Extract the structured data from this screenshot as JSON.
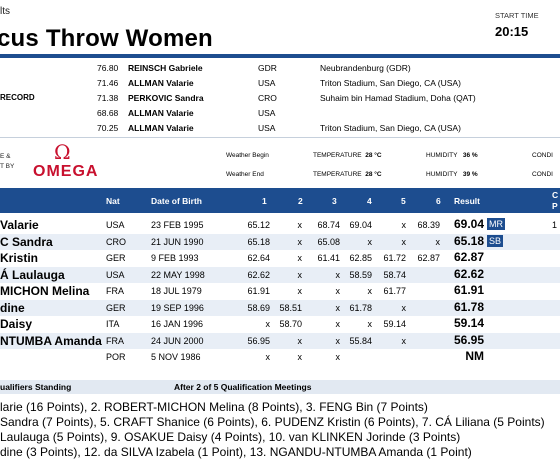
{
  "header": {
    "supertitle": "lts",
    "title": "cus Throw Women",
    "start_time_label": "START TIME",
    "start_time": "20:15"
  },
  "records": [
    {
      "label": "",
      "value": "76.80",
      "name": "REINSCH Gabriele",
      "country": "GDR",
      "place": "Neubrandenburg (GDR)"
    },
    {
      "label": "",
      "value": "71.46",
      "name": "ALLMAN Valarie",
      "country": "USA",
      "place": "Triton Stadium, San Diego, CA (USA)"
    },
    {
      "label": "RECORD",
      "value": "71.38",
      "name": "PERKOVIC Sandra",
      "country": "CRO",
      "place": "Suhaim bin Hamad Stadium, Doha (QAT)"
    },
    {
      "label": "",
      "value": "68.68",
      "name": "ALLMAN Valarie",
      "country": "USA",
      "place": ""
    },
    {
      "label": "",
      "value": "70.25",
      "name": "ALLMAN Valarie",
      "country": "USA",
      "place": "Triton Stadium, San Diego, CA (USA)"
    }
  ],
  "sponsor": {
    "line1": "E &",
    "line2": "T BY",
    "brand": "OMEGA",
    "symbol": "Ω"
  },
  "conditions": {
    "weather_begin": "Weather Begin",
    "weather_end": "Weather End",
    "temperature_label": "TEMPERATURE",
    "temp_begin": "28 °C",
    "temp_end": "28 °C",
    "humidity_label": "HUMIDITY",
    "hum_begin": "36 %",
    "hum_end": "39 %",
    "cond_label": "CONDI"
  },
  "table": {
    "headers": {
      "nat": "Nat",
      "dob": "Date of Birth",
      "a1": "1",
      "a2": "2",
      "a3": "3",
      "a4": "4",
      "a5": "5",
      "a6": "6",
      "result": "Result",
      "extra": "C",
      "extra2": "P"
    },
    "rows": [
      {
        "name": "Valarie",
        "nat": "USA",
        "dob": "23 FEB 1995",
        "a1": "65.12",
        "a2": "x",
        "a3": "68.74",
        "a4": "69.04",
        "a5": "x",
        "a6": "68.39",
        "result": "69.04",
        "tag": "MR",
        "extra": "1"
      },
      {
        "name": "C Sandra",
        "nat": "CRO",
        "dob": "21 JUN 1990",
        "a1": "65.18",
        "a2": "x",
        "a3": "65.08",
        "a4": "x",
        "a5": "x",
        "a6": "x",
        "result": "65.18",
        "tag": "SB",
        "extra": ""
      },
      {
        "name": "Kristin",
        "nat": "GER",
        "dob": "9 FEB 1993",
        "a1": "62.64",
        "a2": "x",
        "a3": "61.41",
        "a4": "62.85",
        "a5": "61.72",
        "a6": "62.87",
        "result": "62.87",
        "tag": "",
        "extra": ""
      },
      {
        "name": "Á Laulauga",
        "nat": "USA",
        "dob": "22 MAY 1998",
        "a1": "62.62",
        "a2": "x",
        "a3": "x",
        "a4": "58.59",
        "a5": "58.74",
        "a6": "",
        "result": "62.62",
        "tag": "",
        "extra": ""
      },
      {
        "name": "MICHON Melina",
        "nat": "FRA",
        "dob": "18 JUL 1979",
        "a1": "61.91",
        "a2": "x",
        "a3": "x",
        "a4": "x",
        "a5": "61.77",
        "a6": "",
        "result": "61.91",
        "tag": "",
        "extra": ""
      },
      {
        "name": "dine",
        "nat": "GER",
        "dob": "19 SEP 1996",
        "a1": "58.69",
        "a2": "58.51",
        "a3": "x",
        "a4": "61.78",
        "a5": "x",
        "a6": "",
        "result": "61.78",
        "tag": "",
        "extra": ""
      },
      {
        "name": "Daisy",
        "nat": "ITA",
        "dob": "16 JAN 1996",
        "a1": "x",
        "a2": "58.70",
        "a3": "x",
        "a4": "x",
        "a5": "59.14",
        "a6": "",
        "result": "59.14",
        "tag": "",
        "extra": ""
      },
      {
        "name": "NTUMBA Amanda",
        "nat": "FRA",
        "dob": "24 JUN 2000",
        "a1": "56.95",
        "a2": "x",
        "a3": "x",
        "a4": "55.84",
        "a5": "x",
        "a6": "",
        "result": "56.95",
        "tag": "",
        "extra": ""
      },
      {
        "name": "",
        "nat": "POR",
        "dob": "5 NOV 1986",
        "a1": "x",
        "a2": "x",
        "a3": "x",
        "a4": "",
        "a5": "",
        "a6": "",
        "result": "NM",
        "tag": "",
        "extra": ""
      }
    ]
  },
  "qualifiers": {
    "title": "ualifiers Standing",
    "subtitle": "After 2 of 5 Qualification Meetings",
    "lines": [
      "larie (16 Points), 2. ROBERT-MICHON Melina (8 Points), 3. FENG Bin (7 Points)",
      "Sandra (7 Points), 5. CRAFT Shanice (6 Points), 6. PUDENZ Kristin (6 Points), 7. CÁ Liliana (5 Points)",
      "Laulauga (5 Points), 9. OSAKUE Daisy (4 Points), 10. van KLINKEN Jorinde (3 Points)",
      "dine (3 Points), 12. da SILVA Izabela (1 Point), 13. NGANDU-NTUMBA Amanda (1 Point)"
    ]
  },
  "colors": {
    "accent": "#1d4d8f",
    "brand": "#c8102e",
    "row_alt": "#e8eef6"
  }
}
